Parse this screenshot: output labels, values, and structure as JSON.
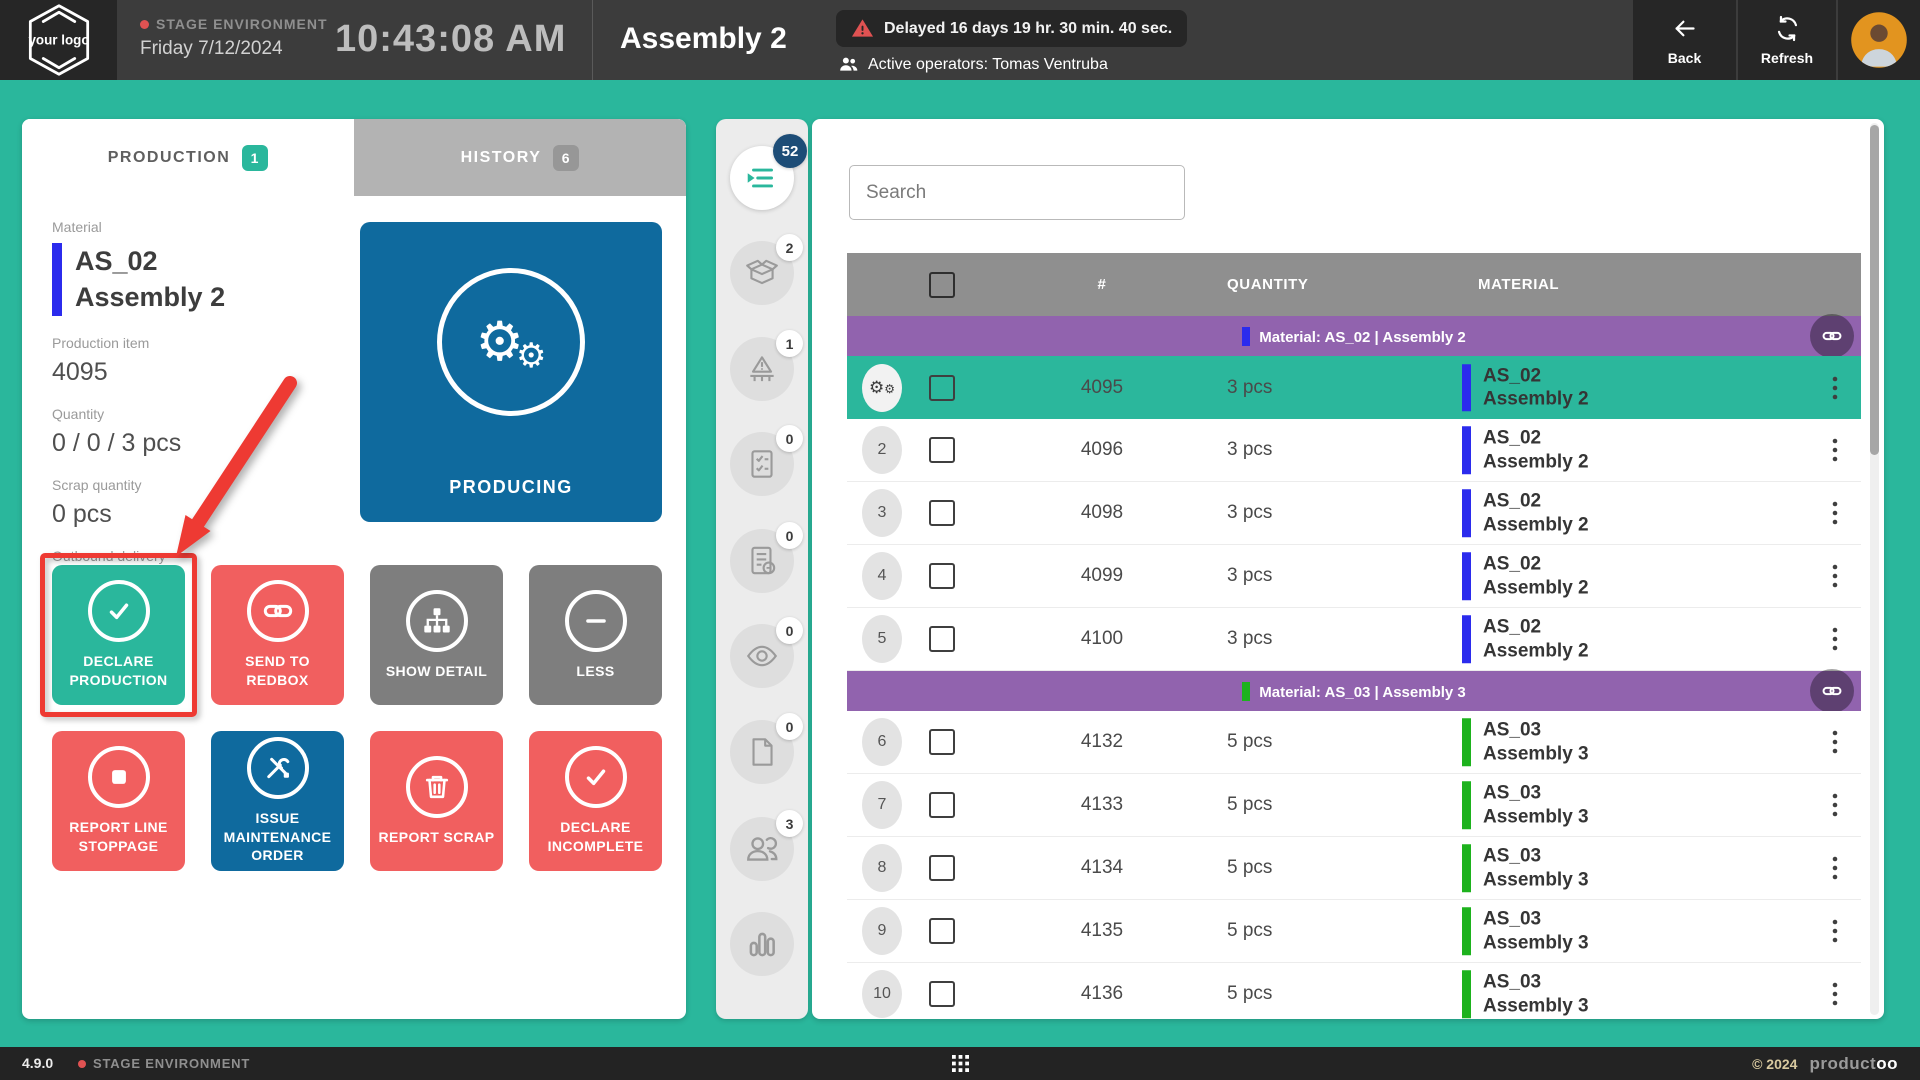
{
  "colors": {
    "accent_teal": "#2ab79c",
    "accent_red": "#f15f5f",
    "accent_blue": "#0f6a9e",
    "accent_gray": "#7e7e7e",
    "group_purple": "#9163ae",
    "material_blue": "#2b2bed",
    "material_green": "#1db21d",
    "badge_navy": "#1d4d77",
    "annotation_red": "#ee3a33"
  },
  "header": {
    "logo_text": "your logo",
    "environment": "STAGE ENVIRONMENT",
    "date": "Friday 7/12/2024",
    "time": "10:43:08 AM",
    "title": "Assembly 2",
    "alert": "Delayed 16 days 19 hr. 30 min. 40 sec.",
    "operators": "Active operators: Tomas Ventruba",
    "back_label": "Back",
    "refresh_label": "Refresh"
  },
  "left_panel": {
    "tabs": [
      {
        "label": "PRODUCTION",
        "badge": "1"
      },
      {
        "label": "HISTORY",
        "badge": "6"
      }
    ],
    "material_label": "Material",
    "material_code": "AS_02",
    "material_name": "Assembly 2",
    "production_item_label": "Production item",
    "production_item": "4095",
    "quantity_label": "Quantity",
    "quantity": "0 / 0 / 3 pcs",
    "scrap_label": "Scrap quantity",
    "scrap": "0 pcs",
    "outbound_label": "Outbound delivery",
    "outbound": "-",
    "status_tile_label": "PRODUCING",
    "buttons": [
      {
        "name": "declare-production-button",
        "label": "DECLARE PRODUCTION",
        "icon": "check",
        "color": "teal",
        "highlighted": true
      },
      {
        "name": "send-to-redbox-button",
        "label": "SEND TO REDBOX",
        "icon": "link",
        "color": "red"
      },
      {
        "name": "show-detail-button",
        "label": "SHOW DETAIL",
        "icon": "sitemap",
        "color": "gray"
      },
      {
        "name": "less-button",
        "label": "LESS",
        "icon": "minus",
        "color": "gray"
      },
      {
        "name": "report-line-stoppage-button",
        "label": "REPORT LINE STOPPAGE",
        "icon": "stop",
        "color": "red"
      },
      {
        "name": "issue-maintenance-order-button",
        "label": "ISSUE MAINTENANCE ORDER",
        "icon": "tools",
        "color": "blue"
      },
      {
        "name": "report-scrap-button",
        "label": "REPORT SCRAP",
        "icon": "trash",
        "color": "red"
      },
      {
        "name": "declare-incomplete-button",
        "label": "DECLARE INCOMPLETE",
        "icon": "check",
        "color": "red"
      }
    ]
  },
  "sidebar": {
    "items": [
      {
        "name": "production-queue",
        "icon": "queue",
        "badge": "52",
        "active": true,
        "badge_dark": true
      },
      {
        "name": "packaging",
        "icon": "box",
        "badge": "2"
      },
      {
        "name": "line-warning",
        "icon": "line-warning",
        "badge": "1"
      },
      {
        "name": "checklists",
        "icon": "checklist",
        "badge": "0"
      },
      {
        "name": "sign-documents",
        "icon": "doc-sign",
        "badge": "0"
      },
      {
        "name": "inspection",
        "icon": "eye",
        "badge": "0"
      },
      {
        "name": "documents",
        "icon": "file",
        "badge": "0"
      },
      {
        "name": "operators",
        "icon": "people",
        "badge": "3"
      },
      {
        "name": "statistics",
        "icon": "chart",
        "badge": null
      }
    ]
  },
  "orders_panel": {
    "search_placeholder": "Search",
    "columns": [
      "#",
      "QUANTITY",
      "MATERIAL"
    ],
    "groups": [
      {
        "label": "Material: AS_02 | Assembly 2",
        "bar_color": "#2b2bed",
        "rows": [
          {
            "index": "",
            "gear": true,
            "selected": true,
            "id": "4095",
            "qty": "3 pcs",
            "code": "AS_02",
            "name": "Assembly 2"
          },
          {
            "index": "2",
            "id": "4096",
            "qty": "3 pcs",
            "code": "AS_02",
            "name": "Assembly 2"
          },
          {
            "index": "3",
            "id": "4098",
            "qty": "3 pcs",
            "code": "AS_02",
            "name": "Assembly 2"
          },
          {
            "index": "4",
            "id": "4099",
            "qty": "3 pcs",
            "code": "AS_02",
            "name": "Assembly 2"
          },
          {
            "index": "5",
            "id": "4100",
            "qty": "3 pcs",
            "code": "AS_02",
            "name": "Assembly 2"
          }
        ]
      },
      {
        "label": "Material: AS_03 | Assembly 3",
        "bar_color": "#1db21d",
        "rows": [
          {
            "index": "6",
            "id": "4132",
            "qty": "5 pcs",
            "code": "AS_03",
            "name": "Assembly 3"
          },
          {
            "index": "7",
            "id": "4133",
            "qty": "5 pcs",
            "code": "AS_03",
            "name": "Assembly 3"
          },
          {
            "index": "8",
            "id": "4134",
            "qty": "5 pcs",
            "code": "AS_03",
            "name": "Assembly 3"
          },
          {
            "index": "9",
            "id": "4135",
            "qty": "5 pcs",
            "code": "AS_03",
            "name": "Assembly 3"
          },
          {
            "index": "10",
            "id": "4136",
            "qty": "5 pcs",
            "code": "AS_03",
            "name": "Assembly 3"
          }
        ]
      }
    ]
  },
  "footer": {
    "version": "4.9.0",
    "environment": "STAGE ENVIRONMENT",
    "copyright": "© 2024",
    "brand_left": "product",
    "brand_right": "oo"
  }
}
